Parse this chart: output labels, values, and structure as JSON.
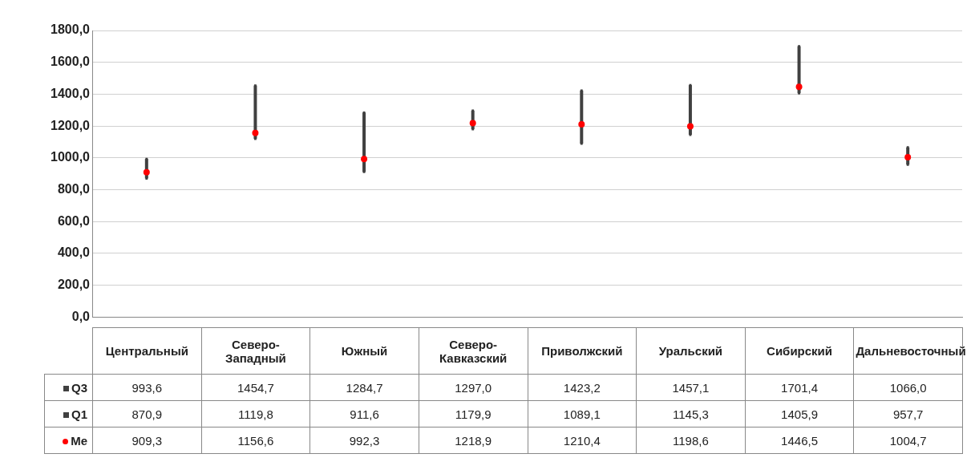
{
  "chart_data": {
    "type": "scatter",
    "categories": [
      "Центральный",
      "Северо-Западный",
      "Южный",
      "Северо-Кавказский",
      "Приволжский",
      "Уральский",
      "Сибирский",
      "Дальневосточный"
    ],
    "series": [
      {
        "name": "Q3",
        "color": "#404040",
        "marker": "square",
        "values": [
          993.6,
          1454.7,
          1284.7,
          1297.0,
          1423.2,
          1457.1,
          1701.4,
          1066.0
        ],
        "value_labels": [
          "993,6",
          "1454,7",
          "1284,7",
          "1297,0",
          "1423,2",
          "1457,1",
          "1701,4",
          "1066,0"
        ]
      },
      {
        "name": "Q1",
        "color": "#404040",
        "marker": "square",
        "values": [
          870.9,
          1119.8,
          911.6,
          1179.9,
          1089.1,
          1145.3,
          1405.9,
          957.7
        ],
        "value_labels": [
          "870,9",
          "1119,8",
          "911,6",
          "1179,9",
          "1089,1",
          "1145,3",
          "1405,9",
          "957,7"
        ]
      },
      {
        "name": "Me",
        "color": "#ff0000",
        "marker": "circle",
        "values": [
          909.3,
          1156.6,
          992.3,
          1218.9,
          1210.4,
          1198.6,
          1446.5,
          1004.7
        ],
        "value_labels": [
          "909,3",
          "1156,6",
          "992,3",
          "1218,9",
          "1210,4",
          "1198,6",
          "1446,5",
          "1004,7"
        ]
      }
    ],
    "ylim": [
      0,
      1800
    ],
    "yticks": [
      {
        "value": 0,
        "label": "0,0"
      },
      {
        "value": 200,
        "label": "200,0"
      },
      {
        "value": 400,
        "label": "400,0"
      },
      {
        "value": 600,
        "label": "600,0"
      },
      {
        "value": 800,
        "label": "800,0"
      },
      {
        "value": 1000,
        "label": "1000,0"
      },
      {
        "value": 1200,
        "label": "1200,0"
      },
      {
        "value": 1400,
        "label": "1400,0"
      },
      {
        "value": 1600,
        "label": "1600,0"
      },
      {
        "value": 1800,
        "label": "1800,0"
      }
    ],
    "grid": "y",
    "legend": "bottom"
  }
}
